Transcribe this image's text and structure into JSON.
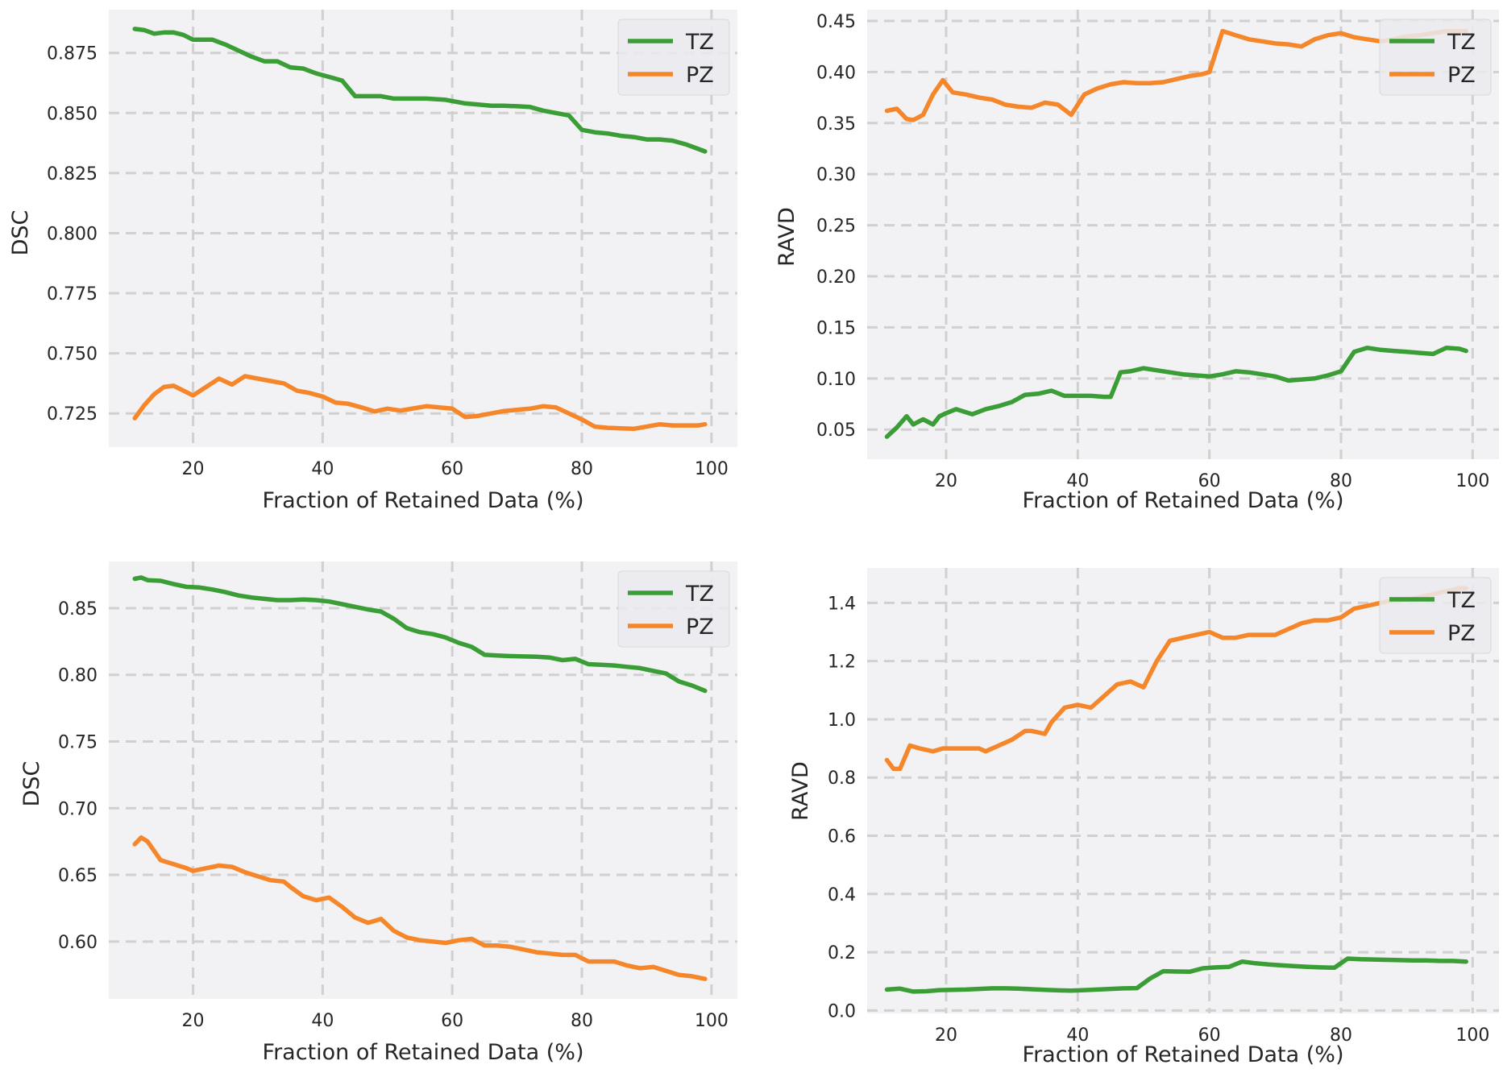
{
  "colors": {
    "TZ": "#3a9d35",
    "PZ": "#f5862a",
    "panel_bg": "#f2f2f4",
    "grid": "#d0d0d0",
    "text": "#262626"
  },
  "chart_data": [
    {
      "type": "line",
      "title": "",
      "xlabel": "Fraction of Retained Data (%)",
      "ylabel": "DSC",
      "xlim": [
        7,
        104
      ],
      "ylim": [
        0.711,
        0.893
      ],
      "xticks": [
        20,
        40,
        60,
        80,
        100
      ],
      "yticks": [
        0.725,
        0.75,
        0.775,
        0.8,
        0.825,
        0.85,
        0.875
      ],
      "ytick_labels": [
        "0.725",
        "0.750",
        "0.775",
        "0.800",
        "0.825",
        "0.850",
        "0.875"
      ],
      "legend": "top-right",
      "series": [
        {
          "name": "TZ",
          "x": [
            11,
            12.5,
            14,
            15.5,
            17,
            18.5,
            20,
            21.5,
            23,
            25,
            27,
            29,
            31,
            33,
            35,
            37,
            39,
            41,
            43,
            45,
            47,
            49,
            51,
            53,
            56,
            59,
            62,
            64,
            66,
            68,
            70,
            72,
            74,
            76,
            78,
            80,
            82,
            84,
            86,
            88,
            90,
            92,
            94,
            96,
            98,
            99
          ],
          "y": [
            0.885,
            0.8845,
            0.883,
            0.8835,
            0.8835,
            0.8825,
            0.8805,
            0.8805,
            0.8805,
            0.8785,
            0.876,
            0.8735,
            0.8715,
            0.8715,
            0.869,
            0.8685,
            0.8665,
            0.865,
            0.8635,
            0.857,
            0.857,
            0.857,
            0.856,
            0.856,
            0.856,
            0.8555,
            0.854,
            0.8535,
            0.853,
            0.853,
            0.8528,
            0.8525,
            0.851,
            0.85,
            0.849,
            0.843,
            0.842,
            0.8415,
            0.8405,
            0.84,
            0.839,
            0.839,
            0.8385,
            0.837,
            0.835,
            0.834
          ]
        },
        {
          "name": "PZ",
          "x": [
            11,
            12.5,
            14,
            15.5,
            17,
            18.5,
            20,
            22,
            24,
            26,
            28,
            30,
            32,
            34,
            36,
            38,
            40,
            42,
            44,
            46,
            48,
            50,
            52,
            56,
            60,
            62,
            64,
            66,
            68,
            70,
            72,
            74,
            76,
            78,
            80,
            82,
            84,
            86,
            88,
            90,
            92,
            94,
            96,
            98,
            99
          ],
          "y": [
            0.723,
            0.7285,
            0.733,
            0.736,
            0.7365,
            0.7345,
            0.7325,
            0.736,
            0.7395,
            0.737,
            0.7405,
            0.7395,
            0.7385,
            0.7375,
            0.7345,
            0.7335,
            0.732,
            0.7295,
            0.729,
            0.7275,
            0.7258,
            0.727,
            0.7262,
            0.728,
            0.727,
            0.7235,
            0.724,
            0.725,
            0.726,
            0.7265,
            0.727,
            0.728,
            0.7275,
            0.725,
            0.7225,
            0.7195,
            0.719,
            0.7188,
            0.7186,
            0.7195,
            0.7205,
            0.72,
            0.72,
            0.72,
            0.7205
          ]
        }
      ]
    },
    {
      "type": "line",
      "title": "",
      "xlabel": "Fraction of Retained Data (%)",
      "ylabel": "RAVD",
      "xlim": [
        8,
        104
      ],
      "ylim": [
        0.021,
        0.461
      ],
      "xticks": [
        20,
        40,
        60,
        80,
        100
      ],
      "yticks": [
        0.05,
        0.1,
        0.15,
        0.2,
        0.25,
        0.3,
        0.35,
        0.4,
        0.45
      ],
      "ytick_labels": [
        "0.05",
        "0.10",
        "0.15",
        "0.20",
        "0.25",
        "0.30",
        "0.35",
        "0.40",
        "0.45"
      ],
      "legend": "top-right",
      "series": [
        {
          "name": "TZ",
          "x": [
            11,
            12.5,
            14,
            15,
            16.5,
            18,
            19,
            20,
            21.5,
            23,
            24,
            26,
            28,
            30,
            32,
            34,
            36,
            38,
            40,
            42,
            44,
            45,
            46.5,
            48,
            50,
            52,
            54,
            56,
            58,
            60,
            62,
            64,
            66,
            68,
            70,
            72,
            74,
            76,
            78,
            80,
            82,
            84,
            86,
            88,
            90,
            92,
            94,
            96,
            98,
            99
          ],
          "y": [
            0.043,
            0.052,
            0.063,
            0.055,
            0.06,
            0.055,
            0.063,
            0.066,
            0.07,
            0.067,
            0.065,
            0.07,
            0.073,
            0.077,
            0.084,
            0.085,
            0.088,
            0.083,
            0.083,
            0.083,
            0.082,
            0.082,
            0.106,
            0.107,
            0.11,
            0.108,
            0.106,
            0.104,
            0.103,
            0.102,
            0.104,
            0.107,
            0.106,
            0.104,
            0.102,
            0.098,
            0.099,
            0.1,
            0.103,
            0.107,
            0.126,
            0.13,
            0.128,
            0.127,
            0.126,
            0.125,
            0.124,
            0.13,
            0.129,
            0.127
          ]
        },
        {
          "name": "PZ",
          "x": [
            11,
            12.5,
            14,
            15,
            16.5,
            18,
            19.5,
            21,
            23,
            25,
            27,
            29,
            31,
            33,
            35,
            37,
            39,
            41,
            43,
            45,
            47,
            49,
            51,
            53,
            55,
            57,
            59,
            60,
            62,
            64,
            66,
            68,
            70,
            72,
            74,
            76,
            78,
            80,
            82,
            84,
            86,
            88,
            90,
            92,
            94,
            96,
            98,
            99
          ],
          "y": [
            0.362,
            0.364,
            0.354,
            0.353,
            0.358,
            0.378,
            0.392,
            0.38,
            0.378,
            0.375,
            0.373,
            0.368,
            0.366,
            0.365,
            0.37,
            0.368,
            0.358,
            0.378,
            0.384,
            0.388,
            0.39,
            0.389,
            0.389,
            0.39,
            0.393,
            0.396,
            0.398,
            0.4,
            0.44,
            0.436,
            0.432,
            0.43,
            0.428,
            0.427,
            0.425,
            0.432,
            0.436,
            0.438,
            0.434,
            0.432,
            0.43,
            0.432,
            0.435,
            0.436,
            0.438,
            0.44,
            0.44,
            0.44
          ]
        }
      ]
    },
    {
      "type": "line",
      "title": "",
      "xlabel": "Fraction of Retained Data (%)",
      "ylabel": "DSC",
      "xlim": [
        7,
        104
      ],
      "ylim": [
        0.557,
        0.885
      ],
      "xticks": [
        20,
        40,
        60,
        80,
        100
      ],
      "yticks": [
        0.6,
        0.65,
        0.7,
        0.75,
        0.8,
        0.85
      ],
      "ytick_labels": [
        "0.60",
        "0.65",
        "0.70",
        "0.75",
        "0.80",
        "0.85"
      ],
      "legend": "top-right",
      "series": [
        {
          "name": "TZ",
          "x": [
            11,
            12,
            13,
            15,
            17,
            19,
            21,
            23,
            25,
            27,
            29,
            31,
            33,
            35,
            37,
            39,
            41,
            43,
            45,
            47,
            49,
            51,
            53,
            55,
            57,
            59,
            61,
            63,
            65,
            67,
            69,
            71,
            73,
            75,
            77,
            79,
            81,
            83,
            85,
            87,
            89,
            91,
            93,
            95,
            97,
            99
          ],
          "y": [
            0.872,
            0.873,
            0.871,
            0.8705,
            0.868,
            0.866,
            0.8655,
            0.864,
            0.862,
            0.8595,
            0.858,
            0.857,
            0.856,
            0.856,
            0.8565,
            0.856,
            0.855,
            0.853,
            0.851,
            0.849,
            0.8475,
            0.842,
            0.835,
            0.832,
            0.8305,
            0.828,
            0.824,
            0.821,
            0.815,
            0.8145,
            0.814,
            0.8138,
            0.8136,
            0.813,
            0.811,
            0.812,
            0.808,
            0.8075,
            0.807,
            0.806,
            0.805,
            0.803,
            0.801,
            0.795,
            0.792,
            0.788
          ]
        },
        {
          "name": "PZ",
          "x": [
            11,
            12,
            13,
            15,
            17,
            19,
            20,
            22,
            24,
            26,
            28,
            30,
            32,
            34,
            35,
            37,
            39,
            41,
            43,
            45,
            47,
            49,
            51,
            53,
            55,
            57,
            59,
            61,
            63,
            65,
            67,
            69,
            71,
            73,
            75,
            77,
            79,
            81,
            83,
            85,
            87,
            89,
            91,
            93,
            95,
            97,
            99
          ],
          "y": [
            0.673,
            0.678,
            0.675,
            0.661,
            0.658,
            0.655,
            0.653,
            0.655,
            0.657,
            0.656,
            0.652,
            0.649,
            0.646,
            0.645,
            0.641,
            0.634,
            0.631,
            0.633,
            0.626,
            0.618,
            0.614,
            0.617,
            0.608,
            0.603,
            0.601,
            0.6,
            0.599,
            0.601,
            0.602,
            0.597,
            0.597,
            0.596,
            0.594,
            0.592,
            0.591,
            0.59,
            0.59,
            0.585,
            0.585,
            0.585,
            0.582,
            0.58,
            0.581,
            0.578,
            0.575,
            0.574,
            0.572
          ]
        }
      ]
    },
    {
      "type": "line",
      "title": "",
      "xlabel": "Fraction of Retained Data (%)",
      "ylabel": "RAVD",
      "xlim": [
        8,
        104
      ],
      "ylim": [
        -0.01,
        1.52
      ],
      "xticks": [
        20,
        40,
        60,
        80,
        100
      ],
      "yticks": [
        0.0,
        0.2,
        0.4,
        0.6,
        0.8,
        1.0,
        1.2,
        1.4
      ],
      "ytick_labels": [
        "0.0",
        "0.2",
        "0.4",
        "0.6",
        "0.8",
        "1.0",
        "1.2",
        "1.4"
      ],
      "legend": "top-right",
      "series": [
        {
          "name": "TZ",
          "x": [
            11,
            13,
            15,
            17,
            19,
            21,
            23,
            25,
            27,
            29,
            31,
            33,
            35,
            37,
            39,
            41,
            43,
            45,
            47,
            49,
            51,
            53,
            55,
            57,
            59,
            61,
            63,
            65,
            67,
            69,
            71,
            73,
            75,
            77,
            79,
            81,
            83,
            85,
            87,
            89,
            91,
            93,
            95,
            97,
            99
          ],
          "y": [
            0.072,
            0.075,
            0.065,
            0.066,
            0.07,
            0.071,
            0.072,
            0.074,
            0.076,
            0.076,
            0.075,
            0.073,
            0.071,
            0.069,
            0.068,
            0.07,
            0.072,
            0.074,
            0.076,
            0.077,
            0.11,
            0.135,
            0.134,
            0.133,
            0.145,
            0.148,
            0.15,
            0.168,
            0.162,
            0.158,
            0.155,
            0.152,
            0.15,
            0.148,
            0.147,
            0.178,
            0.176,
            0.175,
            0.174,
            0.173,
            0.172,
            0.172,
            0.17,
            0.17,
            0.168
          ]
        },
        {
          "name": "PZ",
          "x": [
            11,
            12,
            13,
            14.5,
            16,
            18,
            19.5,
            21,
            23,
            25,
            26,
            28,
            30,
            32,
            33,
            35,
            36,
            38,
            40,
            42,
            44,
            46,
            48,
            50,
            52,
            54,
            56,
            58,
            60,
            62,
            64,
            66,
            68,
            70,
            72,
            74,
            76,
            78,
            80,
            82,
            84,
            86,
            88,
            90,
            92,
            94,
            96,
            98,
            99
          ],
          "y": [
            0.86,
            0.83,
            0.83,
            0.91,
            0.9,
            0.89,
            0.9,
            0.9,
            0.9,
            0.9,
            0.89,
            0.91,
            0.93,
            0.96,
            0.96,
            0.95,
            0.99,
            1.04,
            1.05,
            1.04,
            1.08,
            1.12,
            1.13,
            1.11,
            1.2,
            1.27,
            1.28,
            1.29,
            1.3,
            1.28,
            1.28,
            1.29,
            1.29,
            1.29,
            1.31,
            1.33,
            1.34,
            1.34,
            1.35,
            1.38,
            1.39,
            1.4,
            1.41,
            1.41,
            1.42,
            1.43,
            1.44,
            1.45,
            1.45
          ]
        }
      ]
    }
  ]
}
